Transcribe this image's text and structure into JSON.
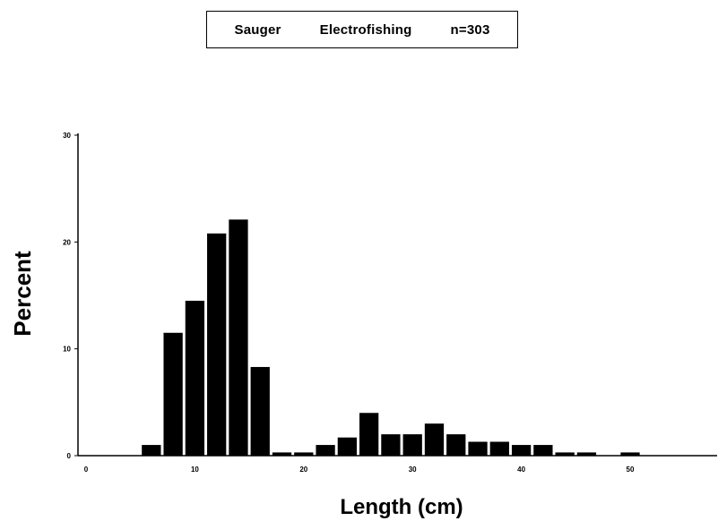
{
  "title": "Sauger   Electrofishing   n=303",
  "chart_data": {
    "type": "bar",
    "title": "Sauger   Electrofishing   n=303",
    "xlabel": "Length (cm)",
    "ylabel": "Percent",
    "xlim": [
      0,
      58
    ],
    "ylim": [
      0,
      30
    ],
    "xticks": [
      0,
      10,
      20,
      30,
      40,
      50
    ],
    "yticks": [
      0,
      10,
      20,
      30
    ],
    "bin_width": 2,
    "bin_starts": [
      5,
      7,
      9,
      11,
      13,
      15,
      17,
      19,
      21,
      23,
      25,
      27,
      29,
      31,
      33,
      35,
      37,
      39,
      41,
      43,
      45,
      47,
      49
    ],
    "values": [
      1.0,
      11.5,
      14.5,
      20.8,
      22.1,
      8.3,
      0.3,
      0.3,
      1.0,
      1.7,
      4.0,
      2.0,
      2.0,
      3.0,
      2.0,
      1.3,
      1.3,
      1.0,
      1.0,
      0.3,
      0.3,
      0,
      0.3
    ],
    "grid": false,
    "legend": "none",
    "bar_color": "#000000"
  }
}
